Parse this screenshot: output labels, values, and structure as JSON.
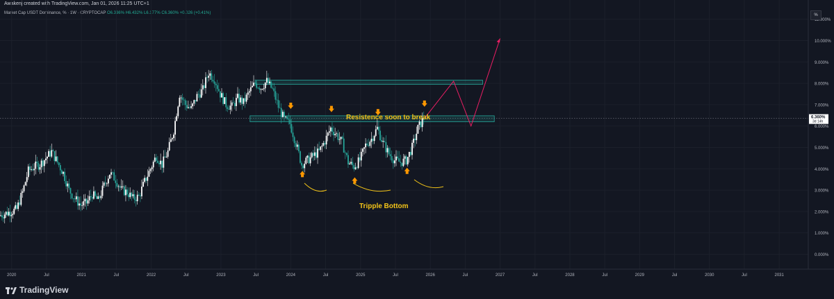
{
  "header": {
    "created_line": "Awakenj created with TradingView.com, Jan 01, 2026 11:25 UTC+1",
    "symbol_line": "Market Cap USDT Dominance, % · 1W · CRYPTOCAP",
    "ohlc": "O6.336% H6.432% L6.177% C6.360% +0.026 (+0.41%)"
  },
  "toolbar": {
    "percent_button": "%"
  },
  "footer": {
    "brand": "TradingView"
  },
  "colors": {
    "background": "#131722",
    "candle_up": "#ffffff",
    "candle_down": "#26a69a",
    "zone_fill": "rgba(38,166,154,0.18)",
    "zone_stroke": "#26a69a",
    "projection": "#e91e63",
    "annotation": "#f2c318",
    "arrow": "#ff9800"
  },
  "annotations": {
    "resistance_text": "Resistence soon to break",
    "pattern_text": "Tripple Bottom"
  },
  "chart_data": {
    "type": "candlestick",
    "title": "Market Cap USDT Dominance, % · 1W · CRYPTOCAP",
    "y_axis": {
      "ticks": [
        "0.000%",
        "1.000%",
        "2.000%",
        "3.000%",
        "4.000%",
        "5.000%",
        "6.000%",
        "7.000%",
        "8.000%",
        "9.000%",
        "10.000%",
        "11.000%"
      ],
      "range": [
        -0.7,
        11.9
      ],
      "unit": "%",
      "side": "right"
    },
    "x_axis": {
      "ticks": [
        "2020",
        "Jul",
        "2021",
        "Jul",
        "2022",
        "Jul",
        "2023",
        "Jul",
        "2024",
        "Jul",
        "2025",
        "Jul",
        "2026",
        "Jul",
        "2027",
        "Jul",
        "2028",
        "Jul",
        "2029",
        "Jul",
        "2030",
        "Jul",
        "2031"
      ],
      "range": [
        "2019-11",
        "2031-06"
      ]
    },
    "last_price": {
      "value": 6.36,
      "label": "6.360%",
      "countdown": "3d 14h"
    },
    "series": [
      {
        "kind": "weekly close path",
        "points": [
          [
            "2019-11",
            1.8
          ],
          [
            "2020-02",
            2.1
          ],
          [
            "2020-03",
            2.9
          ],
          [
            "2020-04",
            3.9
          ],
          [
            "2020-05",
            4.1
          ],
          [
            "2020-06",
            4.2
          ],
          [
            "2020-07",
            4.5
          ],
          [
            "2020-08",
            4.8
          ],
          [
            "2020-09",
            4.3
          ],
          [
            "2020-10",
            3.8
          ],
          [
            "2020-11",
            3.0
          ],
          [
            "2020-12",
            2.6
          ],
          [
            "2021-01",
            2.3
          ],
          [
            "2021-02",
            2.4
          ],
          [
            "2021-03",
            2.8
          ],
          [
            "2021-04",
            2.5
          ],
          [
            "2021-05",
            3.2
          ],
          [
            "2021-06",
            3.8
          ],
          [
            "2021-07",
            3.5
          ],
          [
            "2021-08",
            3.0
          ],
          [
            "2021-09",
            2.9
          ],
          [
            "2021-10",
            2.6
          ],
          [
            "2021-11",
            2.7
          ],
          [
            "2021-12",
            3.4
          ],
          [
            "2022-01",
            4.0
          ],
          [
            "2022-02",
            4.6
          ],
          [
            "2022-03",
            4.2
          ],
          [
            "2022-04",
            4.8
          ],
          [
            "2022-05",
            5.8
          ],
          [
            "2022-06",
            7.5
          ],
          [
            "2022-07",
            7.0
          ],
          [
            "2022-08",
            6.8
          ],
          [
            "2022-09",
            7.4
          ],
          [
            "2022-10",
            7.7
          ],
          [
            "2022-11",
            8.5
          ],
          [
            "2022-12",
            8.2
          ],
          [
            "2023-01",
            7.5
          ],
          [
            "2023-02",
            7.0
          ],
          [
            "2023-03",
            6.9
          ],
          [
            "2023-04",
            7.3
          ],
          [
            "2023-05",
            7.1
          ],
          [
            "2023-06",
            7.6
          ],
          [
            "2023-07",
            8.0
          ],
          [
            "2023-08",
            7.8
          ],
          [
            "2023-09",
            8.1
          ],
          [
            "2023-10",
            7.7
          ],
          [
            "2023-11",
            6.9
          ],
          [
            "2023-12",
            6.3
          ],
          [
            "2024-01",
            6.1
          ],
          [
            "2024-02",
            5.2
          ],
          [
            "2024-03",
            4.2
          ],
          [
            "2024-04",
            4.4
          ],
          [
            "2024-05",
            4.6
          ],
          [
            "2024-06",
            4.8
          ],
          [
            "2024-07",
            5.3
          ],
          [
            "2024-08",
            5.9
          ],
          [
            "2024-09",
            5.6
          ],
          [
            "2024-10",
            5.2
          ],
          [
            "2024-11",
            4.3
          ],
          [
            "2024-12",
            4.1
          ],
          [
            "2025-01",
            4.4
          ],
          [
            "2025-02",
            5.1
          ],
          [
            "2025-03",
            5.4
          ],
          [
            "2025-04",
            5.9
          ],
          [
            "2025-05",
            5.2
          ],
          [
            "2025-06",
            4.7
          ],
          [
            "2025-07",
            4.4
          ],
          [
            "2025-08",
            4.3
          ],
          [
            "2025-09",
            4.4
          ],
          [
            "2025-10",
            5.0
          ],
          [
            "2025-11",
            5.9
          ],
          [
            "2025-12",
            6.36
          ]
        ]
      },
      {
        "kind": "projection",
        "points": [
          [
            "2025-12",
            6.36
          ],
          [
            "2026-05",
            8.1
          ],
          [
            "2026-08",
            6.0
          ],
          [
            "2027-01",
            10.1
          ]
        ]
      }
    ],
    "zones": [
      {
        "name": "upper box",
        "from": "2023-07",
        "to": "2026-10",
        "low": 7.95,
        "high": 8.15
      },
      {
        "name": "resistance box",
        "from": "2023-06",
        "to": "2026-12",
        "low": 6.2,
        "high": 6.48
      }
    ],
    "markers": [
      {
        "kind": "down-arrow",
        "x": "2024-01",
        "y": 6.9
      },
      {
        "kind": "down-arrow",
        "x": "2024-08",
        "y": 6.75
      },
      {
        "kind": "down-arrow",
        "x": "2025-04",
        "y": 6.6
      },
      {
        "kind": "down-arrow",
        "x": "2025-12",
        "y": 7.0
      },
      {
        "kind": "up-arrow",
        "x": "2024-03",
        "y": 3.8
      },
      {
        "kind": "up-arrow",
        "x": "2025-00",
        "y": 3.5
      },
      {
        "kind": "up-arrow",
        "x": "2025-09",
        "y": 3.95
      }
    ]
  }
}
